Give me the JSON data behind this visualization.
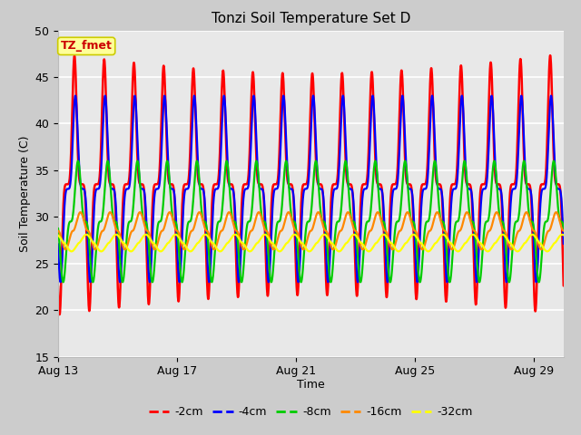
{
  "title": "Tonzi Soil Temperature Set D",
  "xlabel": "Time",
  "ylabel": "Soil Temperature (C)",
  "ylim": [
    15,
    50
  ],
  "y_ticks": [
    15,
    20,
    25,
    30,
    35,
    40,
    45,
    50
  ],
  "x_tick_labels": [
    "Aug 13",
    "Aug 17",
    "Aug 21",
    "Aug 25",
    "Aug 29"
  ],
  "x_tick_pos": [
    0,
    4,
    8,
    12,
    16
  ],
  "series_colors": [
    "#ff0000",
    "#0000ff",
    "#00cc00",
    "#ff8800",
    "#ffff00"
  ],
  "series_labels": [
    "-2cm",
    "-4cm",
    "-8cm",
    "-16cm",
    "-32cm"
  ],
  "annotation_text": "TZ_fmet",
  "annotation_color": "#cc0000",
  "annotation_bg": "#ffff99",
  "annotation_edge": "#cccc00",
  "fig_bg": "#cccccc",
  "plot_bg": "#e8e8e8",
  "grid_color": "#ffffff",
  "n_days": 17,
  "spd": 144,
  "series_params": [
    {
      "mean": 33.5,
      "amp": 14.0,
      "phase": 0.0,
      "phase2": 0.0,
      "amp2": 0.0
    },
    {
      "mean": 33.0,
      "amp": 10.0,
      "phase": 0.03,
      "phase2": 0.0,
      "amp2": 0.0
    },
    {
      "mean": 29.5,
      "amp": 6.5,
      "phase": 0.12,
      "phase2": 0.0,
      "amp2": 0.0
    },
    {
      "mean": 28.5,
      "amp": 2.0,
      "phase": 0.2,
      "phase2": 0.0,
      "amp2": 0.0
    },
    {
      "mean": 27.2,
      "amp": 0.9,
      "phase": 0.4,
      "phase2": 0.0,
      "amp2": 0.0
    }
  ],
  "sharpness": [
    5,
    4,
    3,
    2,
    1.5
  ]
}
